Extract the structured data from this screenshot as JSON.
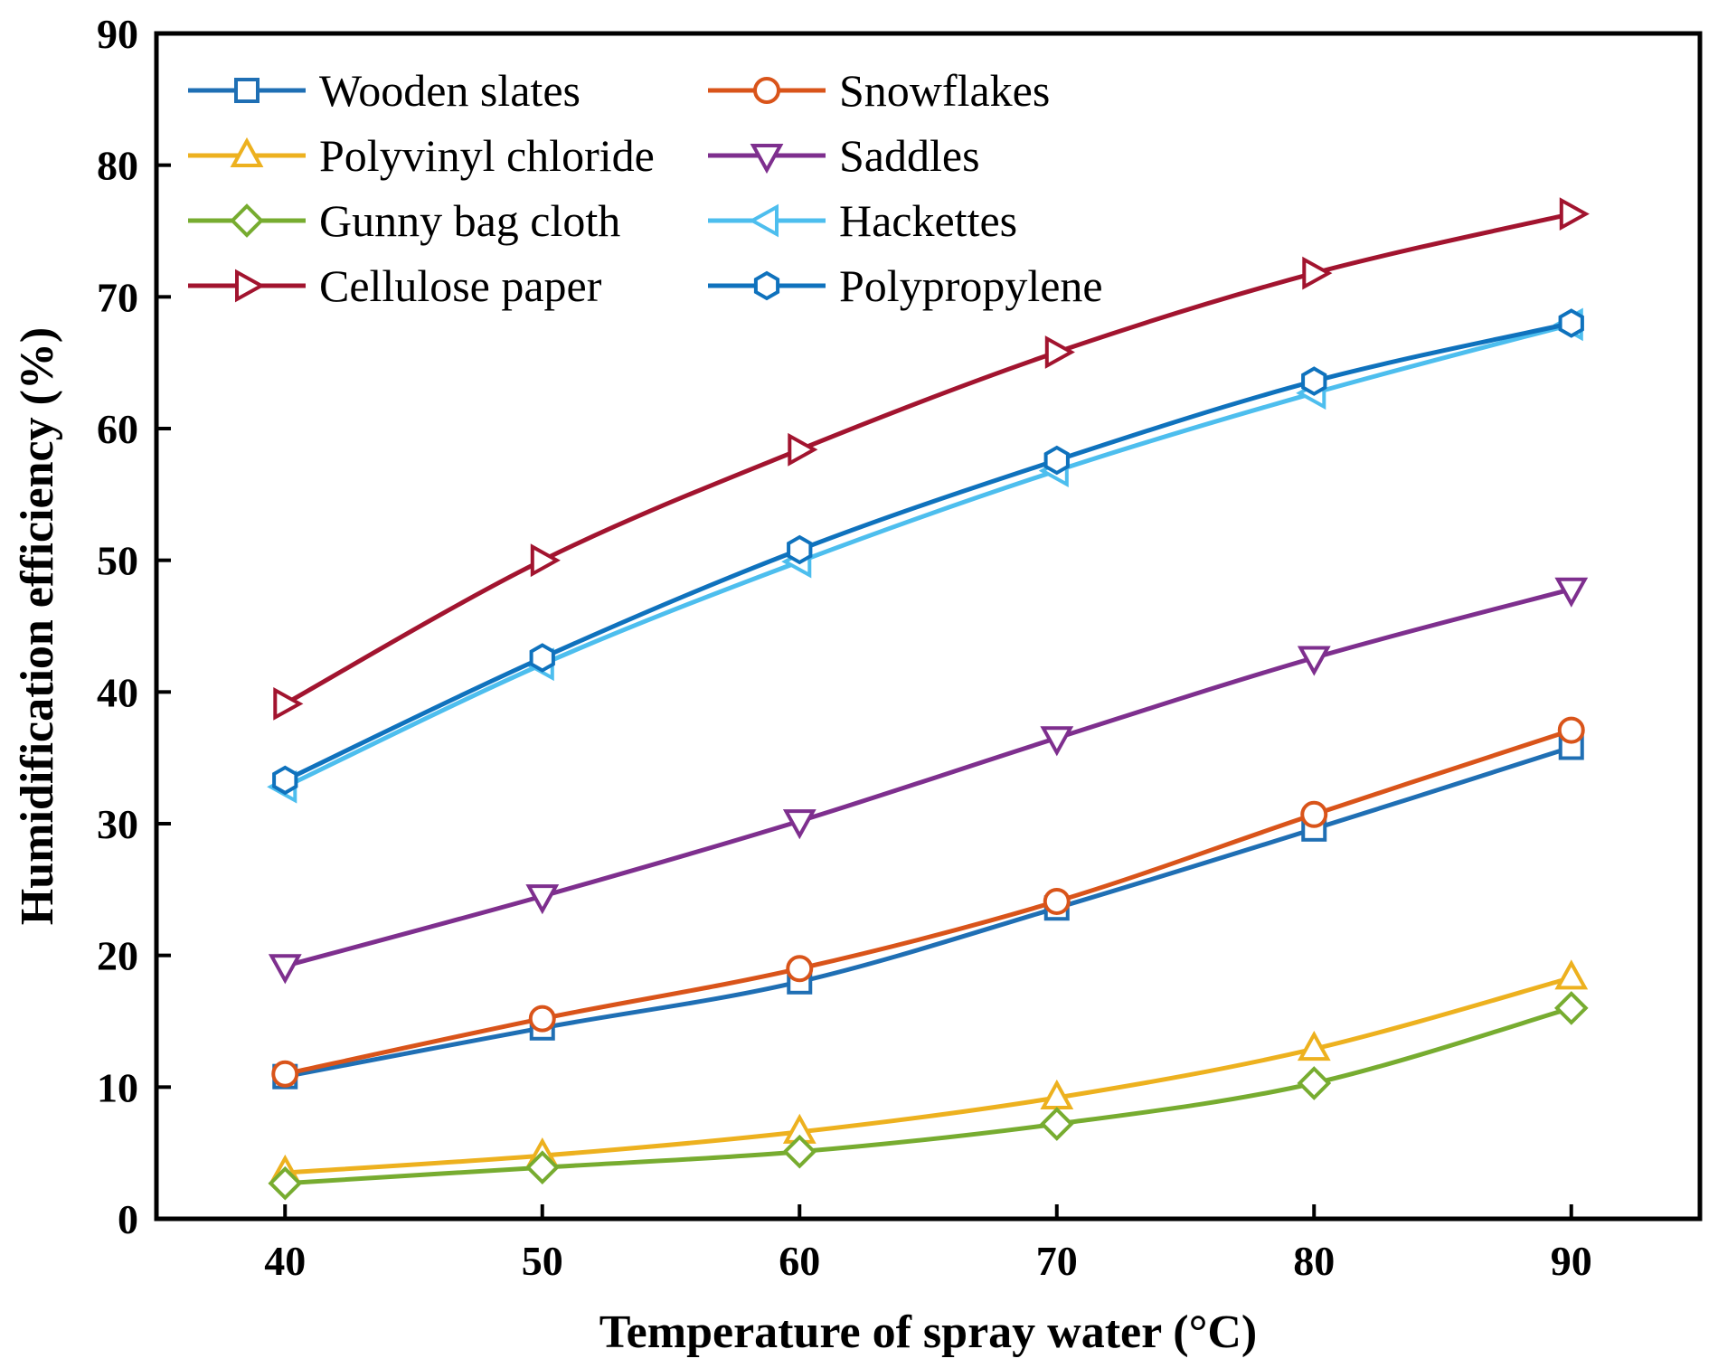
{
  "chart_data": {
    "type": "line",
    "title": "",
    "xlabel": "Temperature of spray water (°C)",
    "ylabel": "Humidification efficiency (%)",
    "xlim": [
      35,
      95
    ],
    "ylim": [
      0,
      90
    ],
    "xticks": [
      40,
      50,
      60,
      70,
      80,
      90
    ],
    "yticks": [
      0,
      10,
      20,
      30,
      40,
      50,
      60,
      70,
      80,
      90
    ],
    "grid": false,
    "legend_position": "top-left",
    "x": [
      40,
      50,
      60,
      70,
      80,
      90
    ],
    "series": [
      {
        "name": "Wooden slates",
        "color": "#1f6fb4",
        "marker": "square",
        "values": [
          10.8,
          14.5,
          18.0,
          23.6,
          29.6,
          35.8
        ]
      },
      {
        "name": "Snowflakes",
        "color": "#d9541a",
        "marker": "circle",
        "values": [
          11.0,
          15.2,
          19.0,
          24.1,
          30.7,
          37.1
        ]
      },
      {
        "name": "Polyvinyl chloride",
        "color": "#edb11f",
        "marker": "triangle-up",
        "values": [
          3.5,
          4.8,
          6.6,
          9.2,
          12.9,
          18.3
        ]
      },
      {
        "name": "Saddles",
        "color": "#7e2f8e",
        "marker": "triangle-down",
        "values": [
          19.2,
          24.5,
          30.2,
          36.5,
          42.6,
          47.8
        ]
      },
      {
        "name": "Gunny bag cloth",
        "color": "#77ac30",
        "marker": "diamond",
        "values": [
          2.7,
          3.9,
          5.1,
          7.2,
          10.3,
          16.0
        ]
      },
      {
        "name": "Hackettes",
        "color": "#4dbeee",
        "marker": "triangle-left",
        "values": [
          32.8,
          42.1,
          49.9,
          56.8,
          62.7,
          67.9
        ]
      },
      {
        "name": "Cellulose paper",
        "color": "#a2142f",
        "marker": "triangle-right",
        "values": [
          39.1,
          50.0,
          58.4,
          65.8,
          71.8,
          76.3
        ]
      },
      {
        "name": "Polypropylene",
        "color": "#0f72bd",
        "marker": "hexagon",
        "values": [
          33.3,
          42.6,
          50.8,
          57.6,
          63.6,
          68.0
        ]
      }
    ]
  }
}
